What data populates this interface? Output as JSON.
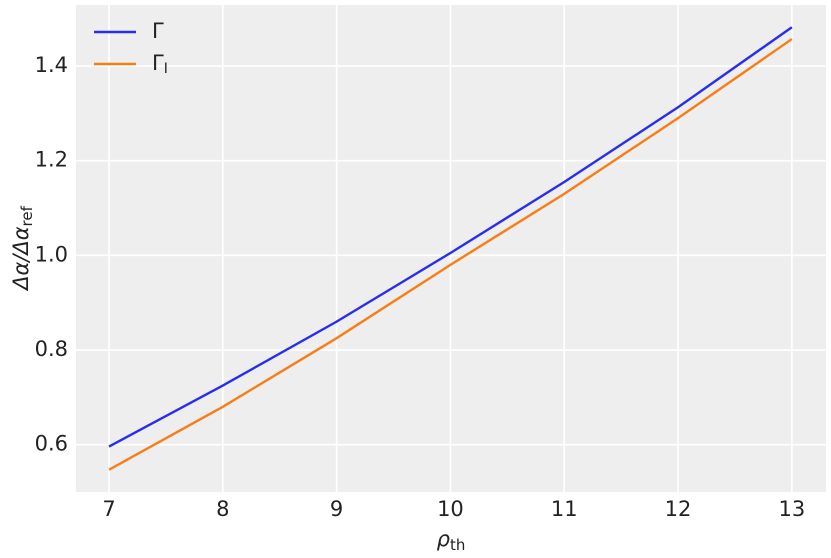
{
  "chart_data": {
    "type": "line",
    "x_label": {
      "text": "ρ",
      "sub": "th"
    },
    "y_label": {
      "text": "Δα/Δα",
      "sub": "ref"
    },
    "x": [
      7,
      8,
      9,
      10,
      11,
      12,
      13
    ],
    "series": [
      {
        "name": "Γ",
        "color": "#2a2eec",
        "values": [
          0.596,
          0.725,
          0.86,
          1.005,
          1.155,
          1.313,
          1.482
        ]
      },
      {
        "name": "Γ",
        "subscript": "I",
        "color": "#fa7c17",
        "values": [
          0.547,
          0.68,
          0.825,
          0.98,
          1.13,
          1.29,
          1.457
        ]
      }
    ],
    "xlim": [
      6.71,
      13.3
    ],
    "xticks": [
      7,
      8,
      9,
      10,
      11,
      12,
      13
    ],
    "ylim": [
      0.5,
      1.529
    ],
    "yticks": [
      0.6,
      0.8,
      1.0,
      1.2,
      1.4
    ],
    "grid": true,
    "legend": "upper left"
  }
}
